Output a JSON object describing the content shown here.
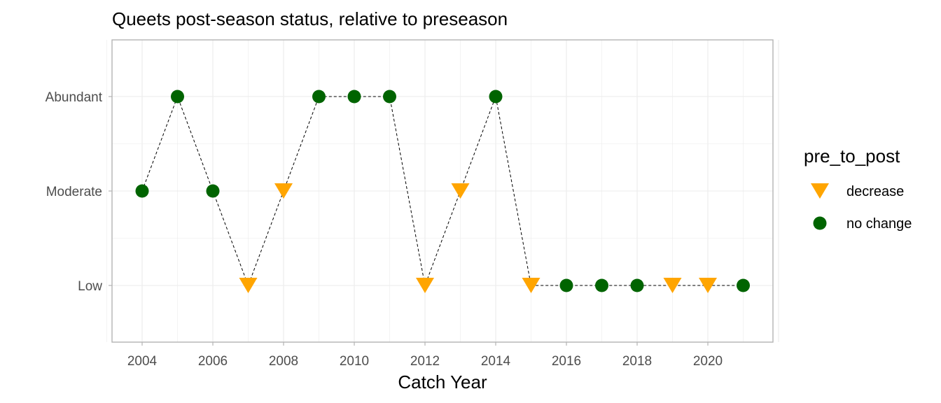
{
  "chart_data": {
    "type": "line",
    "title": "Queets post-season status, relative to preseason",
    "xlabel": "Catch Year",
    "ylabel": "",
    "x_ticks": [
      2004,
      2006,
      2008,
      2010,
      2012,
      2014,
      2016,
      2018,
      2020
    ],
    "y_categories": [
      "Low",
      "Moderate",
      "Abundant"
    ],
    "legend": {
      "title": "pre_to_post",
      "placement": "right",
      "entries": [
        {
          "label": "decrease",
          "shape": "triangle-down",
          "color": "#FFA500"
        },
        {
          "label": "no change",
          "shape": "circle",
          "color": "#006400"
        }
      ]
    },
    "grid": true,
    "line_style": "dashed",
    "points": [
      {
        "x": 2004,
        "y": "Moderate",
        "group": "no change"
      },
      {
        "x": 2005,
        "y": "Abundant",
        "group": "no change"
      },
      {
        "x": 2006,
        "y": "Moderate",
        "group": "no change"
      },
      {
        "x": 2007,
        "y": "Low",
        "group": "decrease"
      },
      {
        "x": 2008,
        "y": "Moderate",
        "group": "decrease"
      },
      {
        "x": 2009,
        "y": "Abundant",
        "group": "no change"
      },
      {
        "x": 2010,
        "y": "Abundant",
        "group": "no change"
      },
      {
        "x": 2011,
        "y": "Abundant",
        "group": "no change"
      },
      {
        "x": 2012,
        "y": "Low",
        "group": "decrease"
      },
      {
        "x": 2013,
        "y": "Moderate",
        "group": "decrease"
      },
      {
        "x": 2014,
        "y": "Abundant",
        "group": "no change"
      },
      {
        "x": 2015,
        "y": "Low",
        "group": "decrease"
      },
      {
        "x": 2016,
        "y": "Low",
        "group": "no change"
      },
      {
        "x": 2017,
        "y": "Low",
        "group": "no change"
      },
      {
        "x": 2018,
        "y": "Low",
        "group": "no change"
      },
      {
        "x": 2019,
        "y": "Low",
        "group": "decrease"
      },
      {
        "x": 2020,
        "y": "Low",
        "group": "decrease"
      },
      {
        "x": 2021,
        "y": "Low",
        "group": "no change"
      }
    ]
  }
}
